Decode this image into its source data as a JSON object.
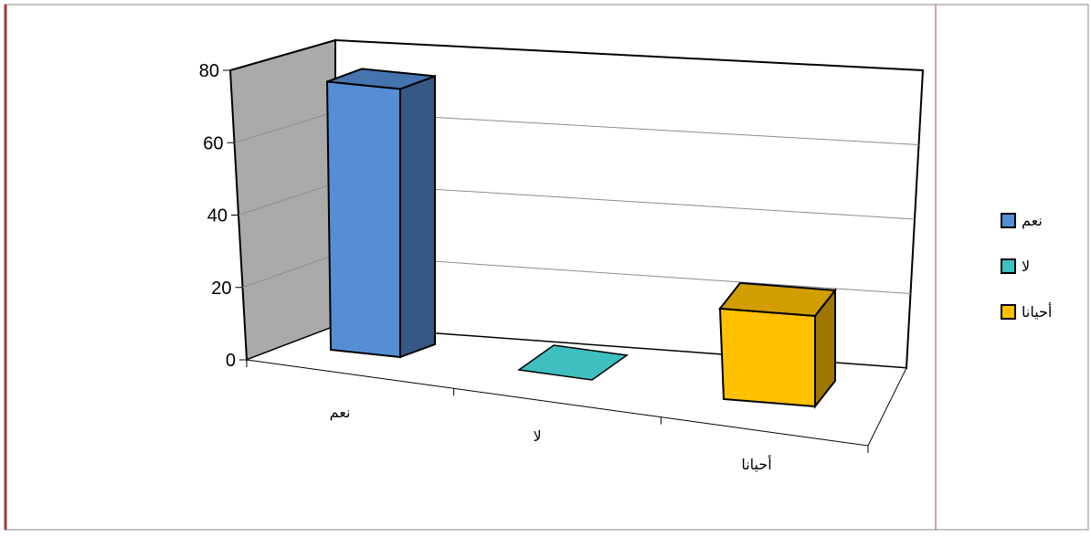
{
  "chart_data": {
    "type": "bar",
    "title": "",
    "xlabel": "",
    "ylabel": "",
    "categories": [
      "نعم",
      "لا",
      "أحيانا"
    ],
    "series": [
      {
        "name": "نعم",
        "values": [
          77,
          0,
          0
        ],
        "color": "#558ED5"
      },
      {
        "name": "لا",
        "values": [
          0,
          0,
          0
        ],
        "color": "#3FBFBF"
      },
      {
        "name": "أحيانا",
        "values": [
          0,
          0,
          26
        ],
        "color": "#FFC000"
      }
    ],
    "yticks": [
      "0",
      "20",
      "40",
      "60",
      "80"
    ],
    "ylim": [
      0,
      80
    ],
    "grid": true,
    "legend_position": "right",
    "style": "3d-column"
  }
}
